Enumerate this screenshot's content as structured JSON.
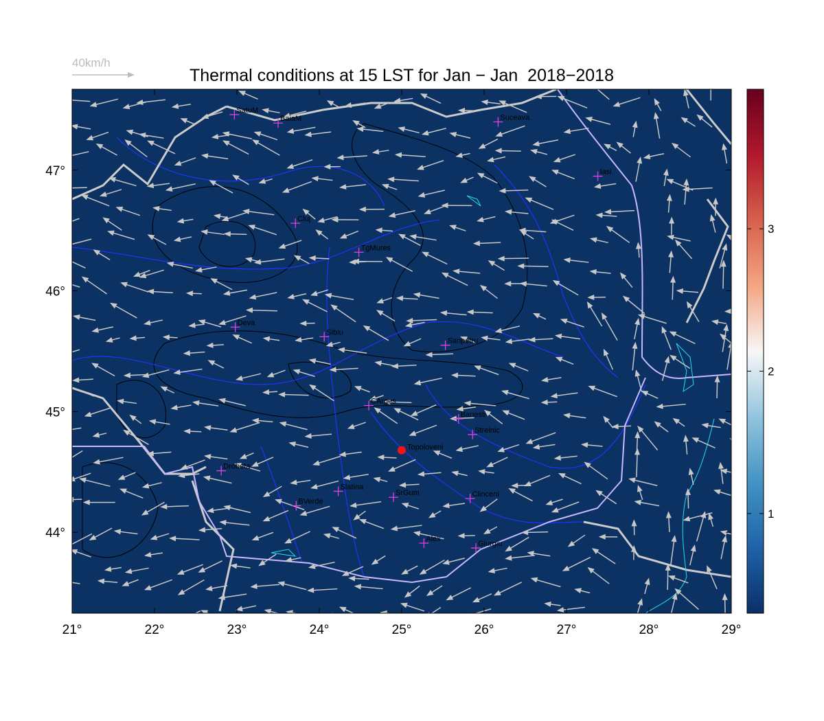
{
  "title": "Thermal conditions at 15 LST for Jan − Jan  2018−2018",
  "scale_label": "40km/h",
  "map": {
    "background": "#0b3263",
    "xlim": [
      21,
      29
    ],
    "ylim": [
      43.33,
      47.67
    ],
    "xticks": [
      {
        "value": 21,
        "label": "21°"
      },
      {
        "value": 22,
        "label": "22°"
      },
      {
        "value": 23,
        "label": "23°"
      },
      {
        "value": 24,
        "label": "24°"
      },
      {
        "value": 25,
        "label": "25°"
      },
      {
        "value": 26,
        "label": "26°"
      },
      {
        "value": 27,
        "label": "27°"
      },
      {
        "value": 28,
        "label": "28°"
      },
      {
        "value": 29,
        "label": "29°"
      }
    ],
    "yticks": [
      {
        "value": 44,
        "label": "44°"
      },
      {
        "value": 45,
        "label": "45°"
      },
      {
        "value": 46,
        "label": "46°"
      },
      {
        "value": 47,
        "label": "47°"
      }
    ],
    "stations": [
      {
        "name": "SatuM",
        "lon": 22.97,
        "lat": 47.46
      },
      {
        "name": "BaiaM",
        "lon": 23.5,
        "lat": 47.39
      },
      {
        "name": "Suceava",
        "lon": 26.17,
        "lat": 47.4
      },
      {
        "name": "Iasi",
        "lon": 27.38,
        "lat": 46.95
      },
      {
        "name": "Cluj",
        "lon": 23.71,
        "lat": 46.56
      },
      {
        "name": "TgMures",
        "lon": 24.48,
        "lat": 46.32
      },
      {
        "name": "Deva",
        "lon": 22.98,
        "lat": 45.7
      },
      {
        "name": "Sibiu",
        "lon": 24.06,
        "lat": 45.62
      },
      {
        "name": "Sanpetru",
        "lon": 25.53,
        "lat": 45.55
      },
      {
        "name": "CArges",
        "lon": 24.6,
        "lat": 45.05
      },
      {
        "name": "Banesti",
        "lon": 25.69,
        "lat": 44.94
      },
      {
        "name": "Streinic",
        "lon": 25.86,
        "lat": 44.81
      },
      {
        "name": "Drobeta",
        "lon": 22.81,
        "lat": 44.51
      },
      {
        "name": "Slatina",
        "lon": 24.23,
        "lat": 44.34
      },
      {
        "name": "SrGum",
        "lon": 24.9,
        "lat": 44.29
      },
      {
        "name": "BVerde",
        "lon": 23.72,
        "lat": 44.22
      },
      {
        "name": "Clinceni",
        "lon": 25.83,
        "lat": 44.28
      },
      {
        "name": "Alex",
        "lon": 25.27,
        "lat": 43.91
      },
      {
        "name": "Giurgiu",
        "lon": 25.9,
        "lat": 43.87
      }
    ],
    "site": {
      "name": "Topoloveni",
      "lon": 25.0,
      "lat": 44.68,
      "color": "#ff1010"
    },
    "colorbar": {
      "lim": [
        0.3,
        3.98
      ],
      "ticks": [
        1,
        2,
        3
      ],
      "colors": [
        "#0b2f66",
        "#1f63a8",
        "#4393c3",
        "#92c5de",
        "#f7f7f7",
        "#f4a582",
        "#d6604d",
        "#b2182b",
        "#67001f"
      ]
    }
  }
}
